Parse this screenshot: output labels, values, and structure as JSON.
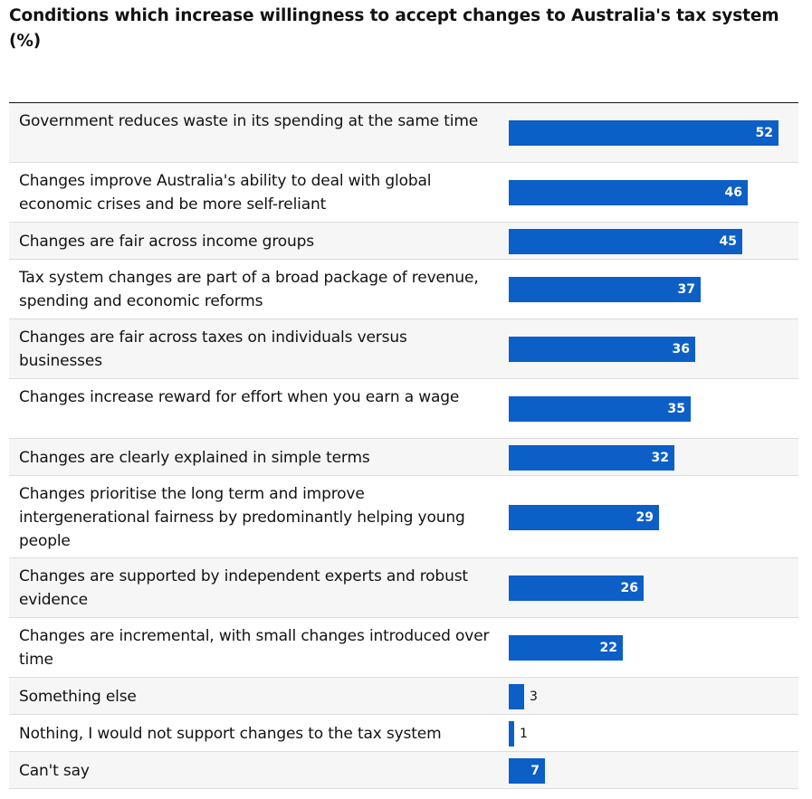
{
  "chart_data": {
    "type": "bar",
    "orientation": "horizontal",
    "title": "Conditions which increase willingness to accept changes to Australia's tax system (%)",
    "categories": [
      "Government reduces waste in its spending at the same time",
      "Changes improve Australia's ability to deal with global economic crises and be more self-reliant",
      "Changes are fair across income groups",
      "Tax system changes are part of a broad package of revenue, spending and economic reforms",
      "Changes are fair across taxes on individuals versus businesses",
      "Changes increase reward for effort when you earn a wage",
      "Changes are clearly explained in simple terms",
      "Changes prioritise the long term and improve intergenerational fairness by predominantly helping young people",
      "Changes are supported by independent experts and robust evidence",
      "Changes are incremental, with small changes introduced over time",
      "Something else",
      "Nothing, I would not support changes to the tax system",
      "Can't say"
    ],
    "values": [
      52,
      46,
      45,
      37,
      36,
      35,
      32,
      29,
      26,
      22,
      3,
      1,
      7
    ],
    "xlim": [
      0,
      52
    ],
    "grid": false,
    "legend": "none",
    "colors": {
      "bar": "#0b5fc7",
      "row_shade": "#f6f6f6"
    }
  }
}
